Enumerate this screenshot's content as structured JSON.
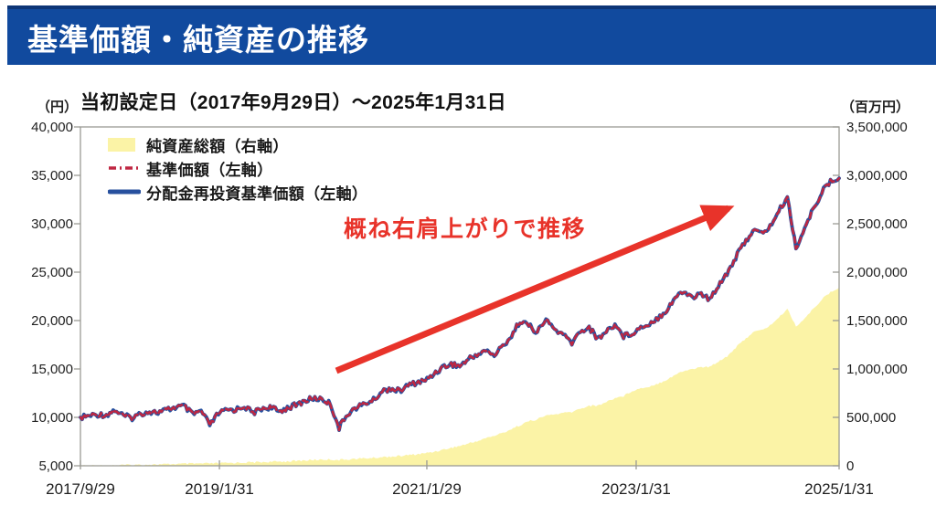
{
  "header": {
    "title": "基準価額・純資産の推移",
    "bg_color": "#114a9e",
    "top_edge_color": "#0d3577",
    "text_color": "#ffffff"
  },
  "subtitle": {
    "left_unit": "（円）",
    "text": "当初設定日（2017年9月29日）～2025年1月31日",
    "right_unit": "（百万円）"
  },
  "annotation": {
    "text": "概ね右肩上がりで推移",
    "color": "#e8332a"
  },
  "chart_data": {
    "type": "line",
    "title": "基準価額・純資産の推移",
    "x_start": "2017/9/29",
    "x_end": "2025/1/31",
    "x_interval": "monthly",
    "x_ticks": {
      "labels": [
        "2017/9/29",
        "2019/1/31",
        "2021/1/29",
        "2023/1/31",
        "2025/1/31"
      ],
      "positions": [
        0,
        0.1832,
        0.4566,
        0.7325,
        1
      ]
    },
    "left_axis": {
      "unit": "円",
      "min": 5000,
      "max": 40000,
      "tick_labels": [
        "40,000",
        "35,000",
        "30,000",
        "25,000",
        "20,000",
        "15,000",
        "10,000",
        "5,000"
      ]
    },
    "right_axis": {
      "unit": "百万円",
      "min": 0,
      "max": 3500000,
      "tick_labels": [
        "3,500,000",
        "3,000,000",
        "2,500,000",
        "2,000,000",
        "1,500,000",
        "1,000,000",
        "500,000",
        "0"
      ]
    },
    "grid": false,
    "legend_position": "top-left-inside",
    "series": [
      {
        "name": "純資産総額（右軸）",
        "type": "area",
        "axis": "right",
        "color": "#fbf3a6",
        "values": [
          1000,
          2000,
          3000,
          4000,
          6000,
          8000,
          9000,
          11000,
          13000,
          14000,
          16000,
          18000,
          20000,
          21000,
          23000,
          24000,
          26000,
          29000,
          31000,
          34000,
          35000,
          38000,
          41000,
          43000,
          46000,
          50000,
          55000,
          60000,
          64000,
          65000,
          60000,
          67000,
          72000,
          77000,
          82000,
          90000,
          96000,
          100000,
          110000,
          118000,
          130000,
          145000,
          165000,
          185000,
          205000,
          230000,
          255000,
          285000,
          310000,
          340000,
          380000,
          420000,
          460000,
          480000,
          520000,
          530000,
          545000,
          555000,
          590000,
          620000,
          620000,
          660000,
          700000,
          720000,
          775000,
          800000,
          820000,
          850000,
          890000,
          940000,
          980000,
          1000000,
          1020000,
          1020000,
          1080000,
          1130000,
          1220000,
          1300000,
          1380000,
          1400000,
          1450000,
          1530000,
          1620000,
          1440000,
          1520000,
          1620000,
          1720000,
          1790000,
          1840000
        ]
      },
      {
        "name": "基準価額（左軸）",
        "type": "line",
        "style": "dashed",
        "axis": "left",
        "color": "#bf2742",
        "values": [
          10000,
          10150,
          10300,
          10250,
          10750,
          10150,
          9950,
          10400,
          10600,
          10500,
          10750,
          11050,
          11150,
          10300,
          10650,
          9200,
          10400,
          10750,
          10800,
          11150,
          10450,
          10900,
          11050,
          10600,
          11000,
          11250,
          11700,
          11950,
          11900,
          11400,
          8900,
          10400,
          11000,
          11400,
          11800,
          12700,
          13000,
          12700,
          13300,
          13600,
          13800,
          14500,
          15200,
          15500,
          15300,
          16000,
          16500,
          16900,
          16400,
          17400,
          18400,
          20000,
          19500,
          18800,
          20100,
          19100,
          18500,
          17700,
          18900,
          19300,
          18100,
          18900,
          19600,
          18400,
          18700,
          19300,
          19700,
          20300,
          21100,
          22400,
          23000,
          22400,
          22800,
          22100,
          23700,
          24900,
          26500,
          28000,
          29300,
          29000,
          29700,
          31300,
          32700,
          27500,
          29500,
          31500,
          33300,
          34300,
          34700
        ]
      },
      {
        "name": "分配金再投資基準価額（左軸）",
        "type": "line",
        "style": "solid",
        "axis": "left",
        "color": "#27509e",
        "values": [
          10000,
          10150,
          10300,
          10250,
          10750,
          10150,
          9950,
          10400,
          10600,
          10500,
          10750,
          11050,
          11150,
          10300,
          10650,
          9200,
          10400,
          10750,
          10800,
          11150,
          10450,
          10900,
          11050,
          10600,
          11000,
          11250,
          11700,
          11950,
          11900,
          11400,
          8900,
          10400,
          11000,
          11400,
          11800,
          12700,
          13000,
          12700,
          13300,
          13600,
          13800,
          14500,
          15200,
          15500,
          15300,
          16000,
          16500,
          16900,
          16400,
          17400,
          18400,
          20000,
          19500,
          18800,
          20100,
          19100,
          18500,
          17700,
          18900,
          19300,
          18100,
          18900,
          19600,
          18400,
          18700,
          19300,
          19700,
          20300,
          21100,
          22400,
          23000,
          22400,
          22800,
          22100,
          23700,
          24900,
          26500,
          28000,
          29300,
          29000,
          29700,
          31300,
          32700,
          27500,
          29500,
          31500,
          33300,
          34300,
          34700
        ]
      }
    ],
    "axis_color": "#9a9a94",
    "tick_text_color": "#1f1f1f"
  }
}
